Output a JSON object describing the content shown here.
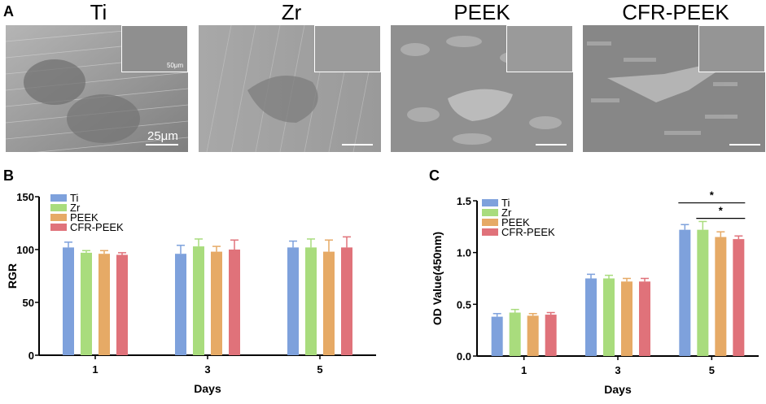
{
  "panels": {
    "a_letter": "A",
    "b_letter": "B",
    "c_letter": "C"
  },
  "sem": [
    {
      "title": "Ti",
      "scale_label": "25μm",
      "inset_label": "50μm",
      "texture": "#9a9a9a"
    },
    {
      "title": "Zr",
      "scale_label": "",
      "inset_label": "",
      "texture": "#a2a2a2"
    },
    {
      "title": "PEEK",
      "scale_label": "",
      "inset_label": "",
      "texture": "#929292"
    },
    {
      "title": "CFR-PEEK",
      "scale_label": "",
      "inset_label": "",
      "texture": "#8a8a8a"
    }
  ],
  "colors": {
    "Ti": "#7ea1dc",
    "Zr": "#a9dc7d",
    "PEEK": "#e6aa66",
    "CFR-PEEK": "#e0727a"
  },
  "chart_data": [
    {
      "type": "bar",
      "panel": "B",
      "categories": [
        "1",
        "3",
        "5"
      ],
      "xlabel": "Days",
      "ylabel": "RGR",
      "ylim": [
        0,
        150
      ],
      "yticks": [
        0,
        50,
        100,
        150
      ],
      "legend": [
        "Ti",
        "Zr",
        "PEEK",
        "CFR-PEEK"
      ],
      "legend_position": "top-left",
      "series": [
        {
          "name": "Ti",
          "values": [
            102,
            96,
            102
          ],
          "errors": [
            5,
            8,
            6
          ]
        },
        {
          "name": "Zr",
          "values": [
            97,
            103,
            102
          ],
          "errors": [
            2,
            7,
            8
          ]
        },
        {
          "name": "PEEK",
          "values": [
            96,
            98,
            98
          ],
          "errors": [
            3,
            5,
            11
          ]
        },
        {
          "name": "CFR-PEEK",
          "values": [
            95,
            100,
            102
          ],
          "errors": [
            2,
            9,
            10
          ]
        }
      ]
    },
    {
      "type": "bar",
      "panel": "C",
      "categories": [
        "1",
        "3",
        "5"
      ],
      "xlabel": "Days",
      "ylabel": "OD Value(450nm)",
      "ylim": [
        0,
        1.5
      ],
      "yticks": [
        "0.0",
        "0.5",
        "1.0",
        "1.5"
      ],
      "legend": [
        "Ti",
        "Zr",
        "PEEK",
        "CFR-PEEK"
      ],
      "legend_position": "top-left",
      "series": [
        {
          "name": "Ti",
          "values": [
            0.38,
            0.75,
            1.22
          ],
          "errors": [
            0.03,
            0.04,
            0.05
          ]
        },
        {
          "name": "Zr",
          "values": [
            0.42,
            0.75,
            1.22
          ],
          "errors": [
            0.03,
            0.03,
            0.08
          ]
        },
        {
          "name": "PEEK",
          "values": [
            0.39,
            0.72,
            1.15
          ],
          "errors": [
            0.02,
            0.03,
            0.05
          ]
        },
        {
          "name": "CFR-PEEK",
          "values": [
            0.4,
            0.72,
            1.13
          ],
          "errors": [
            0.02,
            0.03,
            0.03
          ]
        }
      ],
      "significance": [
        {
          "label": "*",
          "from_series": "Ti",
          "to_series": "CFR-PEEK",
          "category": "5",
          "y": 1.48
        },
        {
          "label": "*",
          "from_series": "Zr",
          "to_series": "CFR-PEEK",
          "category": "5",
          "y": 1.33
        }
      ]
    }
  ]
}
